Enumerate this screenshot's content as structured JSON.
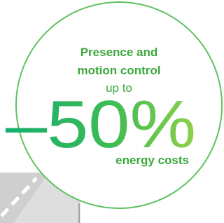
{
  "headline": {
    "line1": "Presence and",
    "line2": "motion control",
    "line3": "up to",
    "figure": "–50%",
    "line4": "energy costs"
  }
}
